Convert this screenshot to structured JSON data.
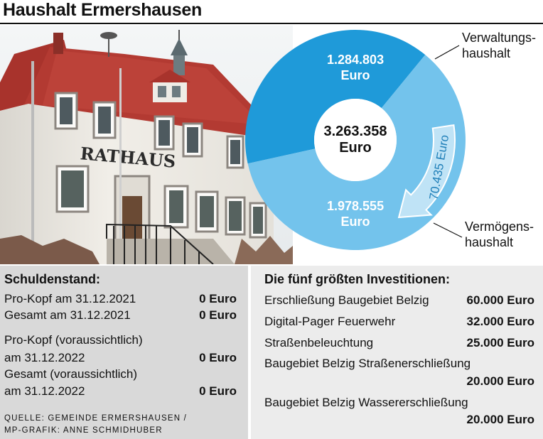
{
  "title": "Haushalt Ermershausen",
  "photo": {
    "sign_text": "RATHAUS"
  },
  "chart_data": {
    "type": "pie",
    "categories": [
      "Verwaltungshaushalt",
      "Vermögenshaushalt"
    ],
    "values": [
      1284803,
      1978555
    ],
    "total": 3263358,
    "labels": [
      {
        "amount": "1.284.803",
        "unit": "Euro"
      },
      {
        "amount": "1.978.555",
        "unit": "Euro"
      }
    ],
    "center_label": {
      "amount": "3.263.358",
      "unit": "Euro"
    },
    "legend": [
      {
        "line1": "Verwaltungs-",
        "line2": "haushalt"
      },
      {
        "line1": "Vermögens-",
        "line2": "haushalt"
      }
    ],
    "transfer": {
      "value": 70435,
      "label": "70.435 Euro"
    },
    "colors": {
      "verwaltung": "#1f9ad9",
      "vermoegen": "#73c3ec",
      "arrow": "#bfe3f6"
    }
  },
  "debt": {
    "heading": "Schuldenstand:",
    "rows": [
      {
        "label": "Pro-Kopf am 31.12.2021",
        "value": "0 Euro"
      },
      {
        "label": "Gesamt am 31.12.2021",
        "value": "0 Euro"
      },
      {
        "label": "Pro-Kopf (voraussichtlich)",
        "label2": "am 31.12.2022",
        "value": "0 Euro"
      },
      {
        "label": "Gesamt (voraussichtlich)",
        "label2": "am 31.12.2022",
        "value": "0 Euro"
      }
    ],
    "source1": "QUELLE: GEMEINDE ERMERSHAUSEN /",
    "source2": "MP-GRAFIK: ANNE SCHMIDHUBER"
  },
  "investments": {
    "heading": "Die fünf größten Investitionen:",
    "rows": [
      {
        "label": "Erschließung Baugebiet Belzig",
        "value": "60.000 Euro"
      },
      {
        "label": "Digital-Pager Feuerwehr",
        "value": "32.000 Euro"
      },
      {
        "label": "Straßenbeleuchtung",
        "value": "25.000 Euro"
      },
      {
        "label": "Baugebiet Belzig Straßenerschließung",
        "value": "20.000 Euro"
      },
      {
        "label": "Baugebiet Belzig Wassererschließung",
        "value": "20.000 Euro"
      }
    ]
  }
}
